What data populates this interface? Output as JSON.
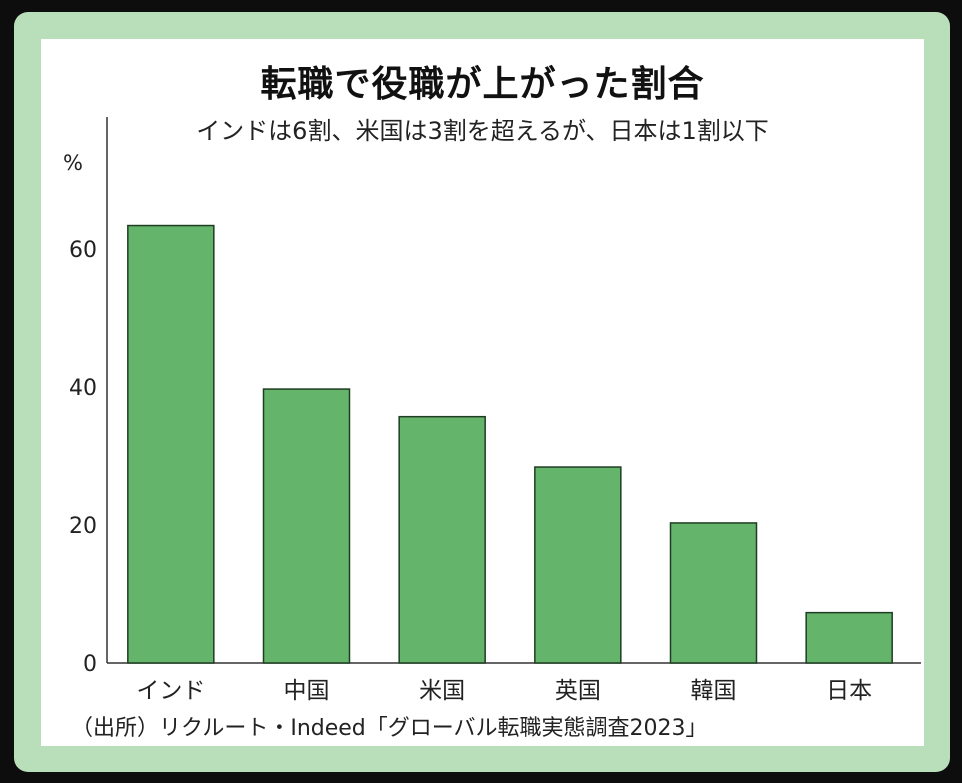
{
  "chart_data": {
    "type": "bar",
    "title": "転職で役職が上がった割合",
    "subtitle": "インドは6割、米国は3割を超えるが、日本は1割以下",
    "ylabel": "%",
    "categories": [
      "インド",
      "中国",
      "米国",
      "英国",
      "韓国",
      "日本"
    ],
    "values": [
      63.4,
      39.7,
      35.7,
      28.4,
      20.3,
      7.3
    ],
    "ylim": [
      0,
      80
    ],
    "yticks": [
      0,
      20,
      40,
      60
    ],
    "grid": false,
    "bar_color": "#64b56b",
    "bar_stroke": "#1f3d22",
    "source": "（出所）リクルート・Indeed「グローバル転職実態調査2023」"
  },
  "colors": {
    "frame": "#b8dfb9",
    "background": "#ffffff"
  }
}
